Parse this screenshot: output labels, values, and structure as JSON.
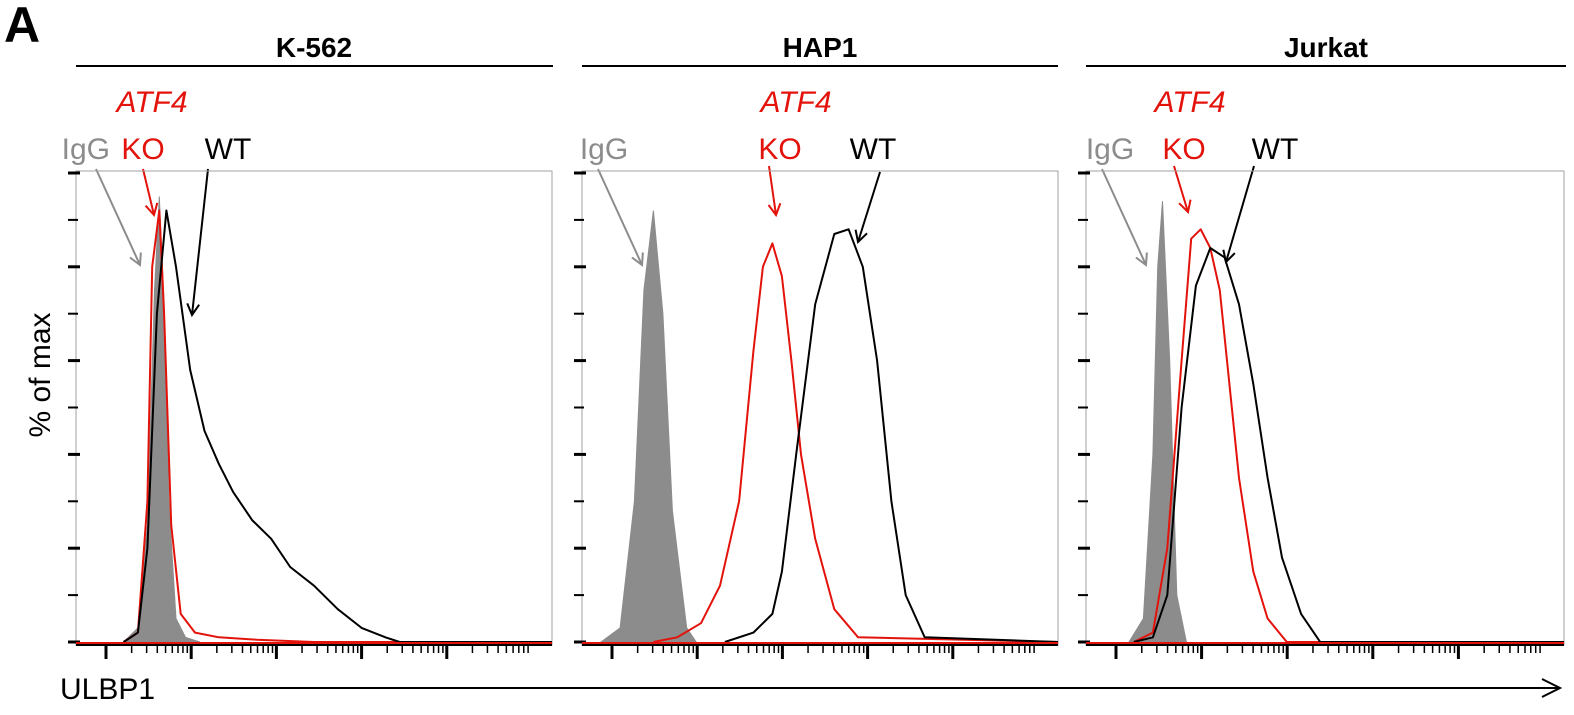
{
  "figure": {
    "panel_letter": "A",
    "y_axis_label": "% of max",
    "x_axis_label": "ULBP1"
  },
  "labels": {
    "igg": "IgG",
    "atf4": "ATF4",
    "ko": "KO",
    "wt": "WT"
  },
  "colors": {
    "igg_fill": "#8c8c8c",
    "igg_arrow": "#8c8c8c",
    "ko": "#e3120b",
    "wt": "#000000",
    "axis": "#000000",
    "plot_border": "#a0a0a0"
  },
  "chart_data": [
    {
      "type": "area",
      "title": "K-562",
      "xlabel": "ULBP1",
      "ylabel": "% of max",
      "xlim": [
        0,
        1
      ],
      "ylim": [
        0,
        100
      ],
      "series": [
        {
          "name": "IgG",
          "style": "filled",
          "x": [
            0.1,
            0.13,
            0.15,
            0.165,
            0.175,
            0.185,
            0.195,
            0.21,
            0.23,
            0.26
          ],
          "y": [
            0,
            3,
            25,
            75,
            95,
            72,
            30,
            5,
            1,
            0
          ]
        },
        {
          "name": "ATF4 KO",
          "style": "line",
          "x": [
            0.1,
            0.13,
            0.15,
            0.16,
            0.175,
            0.185,
            0.2,
            0.22,
            0.25,
            0.3,
            0.38,
            0.5,
            1.0
          ],
          "y": [
            0,
            2,
            30,
            80,
            92,
            70,
            25,
            6,
            2,
            1,
            0.5,
            0,
            0
          ]
        },
        {
          "name": "WT",
          "style": "line",
          "x": [
            0.1,
            0.13,
            0.15,
            0.17,
            0.19,
            0.21,
            0.24,
            0.27,
            0.3,
            0.33,
            0.37,
            0.41,
            0.45,
            0.5,
            0.55,
            0.6,
            0.65,
            0.68,
            1.0
          ],
          "y": [
            0,
            2,
            20,
            70,
            92,
            80,
            58,
            45,
            38,
            32,
            26,
            22,
            16,
            12,
            7,
            3,
            1,
            0,
            0
          ]
        }
      ]
    },
    {
      "type": "area",
      "title": "HAP1",
      "xlabel": "ULBP1",
      "ylabel": "% of max",
      "xlim": [
        0,
        1
      ],
      "ylim": [
        0,
        100
      ],
      "series": [
        {
          "name": "IgG",
          "style": "filled",
          "x": [
            0.04,
            0.08,
            0.11,
            0.13,
            0.15,
            0.17,
            0.19,
            0.22,
            0.24
          ],
          "y": [
            0,
            3,
            30,
            75,
            92,
            70,
            28,
            3,
            0
          ]
        },
        {
          "name": "ATF4 KO",
          "style": "line",
          "x": [
            0.15,
            0.2,
            0.25,
            0.29,
            0.33,
            0.36,
            0.38,
            0.4,
            0.42,
            0.44,
            0.46,
            0.49,
            0.53,
            0.58,
            1.0
          ],
          "y": [
            0,
            1,
            4,
            12,
            30,
            62,
            80,
            85,
            78,
            60,
            40,
            22,
            7,
            1,
            0
          ]
        },
        {
          "name": "WT",
          "style": "line",
          "x": [
            0.3,
            0.36,
            0.4,
            0.42,
            0.45,
            0.49,
            0.53,
            0.56,
            0.59,
            0.62,
            0.65,
            0.68,
            0.72,
            1.0
          ],
          "y": [
            0,
            2,
            6,
            15,
            40,
            72,
            87,
            88,
            80,
            60,
            30,
            10,
            1,
            0
          ]
        }
      ]
    },
    {
      "type": "area",
      "title": "Jurkat",
      "xlabel": "ULBP1",
      "ylabel": "% of max",
      "xlim": [
        0,
        1
      ],
      "ylim": [
        0,
        100
      ],
      "series": [
        {
          "name": "IgG",
          "style": "filled",
          "x": [
            0.09,
            0.12,
            0.14,
            0.15,
            0.16,
            0.175,
            0.19,
            0.21
          ],
          "y": [
            0,
            5,
            40,
            80,
            94,
            60,
            10,
            0
          ]
        },
        {
          "name": "ATF4 KO",
          "style": "line",
          "x": [
            0.1,
            0.14,
            0.17,
            0.2,
            0.22,
            0.24,
            0.26,
            0.28,
            0.3,
            0.32,
            0.35,
            0.38,
            0.42,
            1.0
          ],
          "y": [
            0,
            2,
            20,
            60,
            86,
            88,
            84,
            75,
            55,
            35,
            15,
            5,
            0,
            0
          ]
        },
        {
          "name": "WT",
          "style": "line",
          "x": [
            0.1,
            0.14,
            0.17,
            0.2,
            0.23,
            0.26,
            0.29,
            0.32,
            0.35,
            0.38,
            0.41,
            0.45,
            0.49,
            1.0
          ],
          "y": [
            0,
            1,
            10,
            50,
            76,
            84,
            82,
            72,
            55,
            35,
            18,
            6,
            0,
            0
          ]
        }
      ]
    }
  ]
}
